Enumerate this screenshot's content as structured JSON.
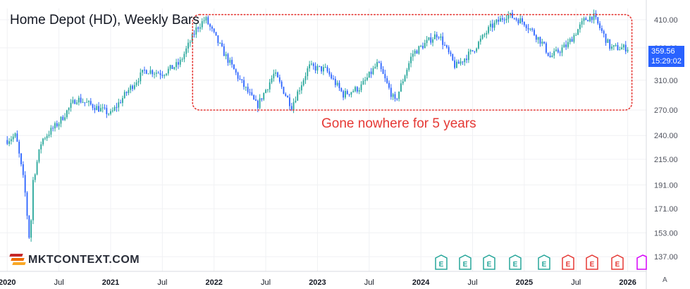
{
  "chart_data": {
    "type": "candlestick",
    "title": "Home Depot (HD), Weekly Bars",
    "annotation": "Gone nowhere for 5 years",
    "watermark": "MKTCONTEXT.COM",
    "last_price": "359.56",
    "countdown": "15:29:02",
    "y_scale": "log",
    "ylim": [
      128,
      432
    ],
    "y_ticks": [
      "410.00",
      "360.00",
      "310.00",
      "270.00",
      "240.00",
      "215.00",
      "191.00",
      "171.00",
      "153.00",
      "137.00"
    ],
    "x_ticks": [
      "2020",
      "Jul",
      "2021",
      "Jul",
      "2022",
      "Jul",
      "2023",
      "Jul",
      "2024",
      "Jul",
      "2025",
      "Jul",
      "2026"
    ],
    "range_box": {
      "x_start": "2021-11",
      "x_end": "2026-01",
      "y_low": 270,
      "y_high": 420
    },
    "earnings_markers": [
      "E",
      "E",
      "E",
      "E",
      "E",
      "E",
      "E",
      "E"
    ],
    "axis_button": "A",
    "series": [
      {
        "x": "2020-01",
        "value": 235
      },
      {
        "x": "2020-02",
        "value": 240
      },
      {
        "x": "2020-03",
        "value": 190
      },
      {
        "x": "2020-03-20",
        "value": 145
      },
      {
        "x": "2020-04",
        "value": 195
      },
      {
        "x": "2020-05",
        "value": 235
      },
      {
        "x": "2020-07",
        "value": 255
      },
      {
        "x": "2020-09",
        "value": 285
      },
      {
        "x": "2020-11",
        "value": 275
      },
      {
        "x": "2021-01",
        "value": 265
      },
      {
        "x": "2021-03",
        "value": 295
      },
      {
        "x": "2021-05",
        "value": 325
      },
      {
        "x": "2021-07",
        "value": 320
      },
      {
        "x": "2021-09",
        "value": 335
      },
      {
        "x": "2021-11",
        "value": 395
      },
      {
        "x": "2021-12",
        "value": 412
      },
      {
        "x": "2022-02",
        "value": 355
      },
      {
        "x": "2022-04",
        "value": 310
      },
      {
        "x": "2022-06",
        "value": 275
      },
      {
        "x": "2022-08",
        "value": 320
      },
      {
        "x": "2022-10",
        "value": 275
      },
      {
        "x": "2022-12",
        "value": 330
      },
      {
        "x": "2023-02",
        "value": 325
      },
      {
        "x": "2023-04",
        "value": 290
      },
      {
        "x": "2023-06",
        "value": 300
      },
      {
        "x": "2023-08",
        "value": 335
      },
      {
        "x": "2023-10",
        "value": 280
      },
      {
        "x": "2023-12",
        "value": 350
      },
      {
        "x": "2024-03",
        "value": 385
      },
      {
        "x": "2024-05",
        "value": 330
      },
      {
        "x": "2024-07",
        "value": 355
      },
      {
        "x": "2024-09",
        "value": 395
      },
      {
        "x": "2024-11",
        "value": 420
      },
      {
        "x": "2025-01",
        "value": 405
      },
      {
        "x": "2025-03",
        "value": 370
      },
      {
        "x": "2025-04",
        "value": 345
      },
      {
        "x": "2025-06",
        "value": 365
      },
      {
        "x": "2025-08",
        "value": 410
      },
      {
        "x": "2025-09",
        "value": 418
      },
      {
        "x": "2025-11",
        "value": 360
      },
      {
        "x": "2026-01",
        "value": 360
      }
    ]
  }
}
